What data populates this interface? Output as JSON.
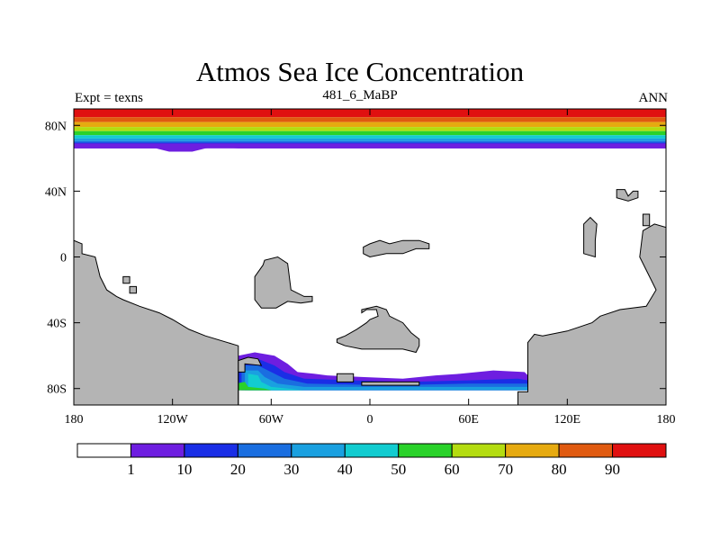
{
  "chart_data": {
    "type": "heatmap",
    "title": "Atmos Sea Ice Concentration",
    "subtitle": "481_6_MaBP",
    "left_label": "Expt = texns",
    "right_label": "ANN",
    "x_range": [
      -180,
      180
    ],
    "y_range": [
      -90,
      90
    ],
    "x_ticks": [
      {
        "value": -180,
        "label": "180"
      },
      {
        "value": -120,
        "label": "120W"
      },
      {
        "value": -60,
        "label": "60W"
      },
      {
        "value": 0,
        "label": "0"
      },
      {
        "value": 60,
        "label": "60E"
      },
      {
        "value": 120,
        "label": "120E"
      },
      {
        "value": 180,
        "label": "180"
      }
    ],
    "y_ticks": [
      {
        "value": 80,
        "label": "80N"
      },
      {
        "value": 40,
        "label": "40N"
      },
      {
        "value": 0,
        "label": "0"
      },
      {
        "value": -40,
        "label": "40S"
      },
      {
        "value": -80,
        "label": "80S"
      }
    ],
    "levels": [
      1,
      10,
      20,
      30,
      40,
      50,
      60,
      70,
      80,
      90
    ],
    "level_labels": [
      "1",
      "10",
      "20",
      "30",
      "40",
      "50",
      "60",
      "70",
      "80",
      "90"
    ],
    "colors": [
      "#ffffff",
      "#6e1ee0",
      "#1a2ee6",
      "#1a6ee0",
      "#1aa0e0",
      "#12ccd0",
      "#2ad22a",
      "#b4dc10",
      "#e6aa10",
      "#e05a10",
      "#e01010"
    ],
    "land_color": "#b4b4b4",
    "arctic_bands": [
      {
        "lat_south": 85,
        "lat_north": 90,
        "level": 10
      },
      {
        "lat_south": 82,
        "lat_north": 85,
        "level": 9
      },
      {
        "lat_south": 79,
        "lat_north": 82,
        "level": 8
      },
      {
        "lat_south": 76.5,
        "lat_north": 79,
        "level": 7
      },
      {
        "lat_south": 74,
        "lat_north": 76.5,
        "level": 6
      },
      {
        "lat_south": 72,
        "lat_north": 74,
        "level": 5
      },
      {
        "lat_south": 70.5,
        "lat_north": 72,
        "level": 4
      },
      {
        "lat_south": 69.5,
        "lat_north": 70.5,
        "level": 3
      },
      {
        "lat_south": 68.5,
        "lat_north": 69.5,
        "level": 2
      },
      {
        "lat_south": 66,
        "lat_north": 68.5,
        "level": 1
      }
    ],
    "arctic_edge": [
      [
        -180,
        66
      ],
      [
        -130,
        66
      ],
      [
        -122,
        64
      ],
      [
        -108,
        64
      ],
      [
        -100,
        66
      ],
      [
        -94,
        67
      ],
      [
        -80,
        66
      ],
      [
        -40,
        66
      ],
      [
        0,
        66
      ],
      [
        60,
        66
      ],
      [
        120,
        66
      ],
      [
        180,
        66
      ]
    ],
    "antarctic_ice": [
      {
        "level": 1,
        "polygon": [
          [
            -86,
            -81
          ],
          [
            -86,
            -78
          ],
          [
            -80,
            -60
          ],
          [
            -70,
            -58
          ],
          [
            -58,
            -60
          ],
          [
            -50,
            -65
          ],
          [
            -44,
            -70
          ],
          [
            -34,
            -71
          ],
          [
            -26,
            -72
          ],
          [
            -5,
            -73
          ],
          [
            20,
            -74
          ],
          [
            40,
            -72
          ],
          [
            55,
            -71
          ],
          [
            75,
            -69
          ],
          [
            94,
            -70
          ],
          [
            100,
            -76
          ],
          [
            110,
            -80
          ],
          [
            110,
            -81
          ]
        ]
      },
      {
        "level": 2,
        "polygon": [
          [
            -80,
            -81
          ],
          [
            -80,
            -63
          ],
          [
            -68,
            -62
          ],
          [
            -58,
            -66
          ],
          [
            -52,
            -70
          ],
          [
            -40,
            -74
          ],
          [
            -10,
            -75
          ],
          [
            20,
            -76
          ],
          [
            60,
            -75
          ],
          [
            90,
            -74
          ],
          [
            108,
            -77
          ],
          [
            108,
            -81
          ]
        ]
      },
      {
        "level": 3,
        "polygon": [
          [
            -78,
            -81
          ],
          [
            -78,
            -66
          ],
          [
            -68,
            -66
          ],
          [
            -60,
            -70
          ],
          [
            -52,
            -74
          ],
          [
            -38,
            -77
          ],
          [
            10,
            -78
          ],
          [
            60,
            -77
          ],
          [
            100,
            -77
          ],
          [
            108,
            -78
          ],
          [
            108,
            -81
          ]
        ]
      },
      {
        "level": 4,
        "polygon": [
          [
            -76,
            -81
          ],
          [
            -76,
            -69
          ],
          [
            -68,
            -69
          ],
          [
            -64,
            -73
          ],
          [
            -56,
            -77
          ],
          [
            -40,
            -79
          ],
          [
            100,
            -79
          ],
          [
            108,
            -79
          ],
          [
            108,
            -81
          ]
        ]
      },
      {
        "level": 5,
        "polygon": [
          [
            -74,
            -81
          ],
          [
            -74,
            -71
          ],
          [
            -68,
            -72
          ],
          [
            -66,
            -76
          ],
          [
            -60,
            -79
          ],
          [
            -50,
            -80
          ],
          [
            -40,
            -81
          ]
        ]
      },
      {
        "level": 6,
        "polygon": [
          [
            -82,
            -81
          ],
          [
            -82,
            -77
          ],
          [
            -76,
            -76
          ],
          [
            -74,
            -79
          ],
          [
            -64,
            -80
          ],
          [
            -60,
            -81
          ]
        ]
      }
    ],
    "land": [
      {
        "name": "Pacific margin",
        "polygon": [
          [
            -180,
            -90
          ],
          [
            -180,
            10
          ],
          [
            -175,
            8
          ],
          [
            -175,
            2
          ],
          [
            -167,
            0
          ],
          [
            -164,
            -12
          ],
          [
            -160,
            -20
          ],
          [
            -154,
            -24
          ],
          [
            -150,
            -26
          ],
          [
            -140,
            -30
          ],
          [
            -128,
            -34
          ],
          [
            -120,
            -38
          ],
          [
            -110,
            -44
          ],
          [
            -100,
            -48
          ],
          [
            -80,
            -54
          ],
          [
            -80,
            -90
          ]
        ]
      },
      {
        "name": "Antarctic block",
        "polygon": [
          [
            -80,
            -90
          ],
          [
            -80,
            -63
          ],
          [
            -74,
            -61
          ],
          [
            -68,
            -62
          ],
          [
            -66,
            -66
          ],
          [
            -76,
            -65
          ],
          [
            -76,
            -70
          ],
          [
            -80,
            -70
          ],
          [
            -80,
            -90
          ]
        ]
      },
      {
        "name": "Eastern continent",
        "polygon": [
          [
            180,
            -90
          ],
          [
            180,
            18
          ],
          [
            173,
            20
          ],
          [
            166,
            16
          ],
          [
            164,
            0
          ],
          [
            170,
            -12
          ],
          [
            174,
            -20
          ],
          [
            168,
            -30
          ],
          [
            152,
            -32
          ],
          [
            140,
            -36
          ],
          [
            135,
            -40
          ],
          [
            120,
            -45
          ],
          [
            105,
            -48
          ],
          [
            100,
            -47
          ],
          [
            96,
            -52
          ],
          [
            96,
            -82
          ],
          [
            90,
            -82
          ],
          [
            90,
            -90
          ]
        ]
      },
      {
        "name": "Continent A",
        "polygon": [
          [
            -70,
            -20
          ],
          [
            -70,
            -12
          ],
          [
            -65,
            -5
          ],
          [
            -64,
            -2
          ],
          [
            -56,
            0
          ],
          [
            -50,
            -4
          ],
          [
            -48,
            -20
          ],
          [
            -40,
            -24
          ],
          [
            -35,
            -24
          ],
          [
            -35,
            -27
          ],
          [
            -42,
            -28
          ],
          [
            -50,
            -27
          ],
          [
            -57,
            -31
          ],
          [
            -66,
            -31
          ],
          [
            -70,
            -26
          ]
        ]
      },
      {
        "name": "Continent B",
        "polygon": [
          [
            -5,
            -32
          ],
          [
            -5,
            -34
          ],
          [
            -2,
            -32
          ],
          [
            4,
            -32
          ],
          [
            5,
            -36
          ],
          [
            0,
            -38
          ],
          [
            -2,
            -40
          ],
          [
            -8,
            -44
          ],
          [
            -15,
            -48
          ],
          [
            -20,
            -50
          ],
          [
            -20,
            -52
          ],
          [
            -15,
            -54
          ],
          [
            -5,
            -56
          ],
          [
            20,
            -56
          ],
          [
            28,
            -58
          ],
          [
            30,
            -54
          ],
          [
            30,
            -50
          ],
          [
            25,
            -46
          ],
          [
            20,
            -40
          ],
          [
            12,
            -36
          ],
          [
            10,
            -32
          ],
          [
            4,
            -30
          ]
        ]
      },
      {
        "name": "Continent C",
        "polygon": [
          [
            0,
            8
          ],
          [
            6,
            10
          ],
          [
            12,
            8
          ],
          [
            20,
            10
          ],
          [
            30,
            10
          ],
          [
            36,
            8
          ],
          [
            36,
            5
          ],
          [
            28,
            5
          ],
          [
            20,
            2
          ],
          [
            10,
            2
          ],
          [
            0,
            0
          ],
          [
            -4,
            2
          ],
          [
            -4,
            6
          ]
        ]
      },
      {
        "name": "Island 1",
        "polygon": [
          [
            130,
            20
          ],
          [
            130,
            2
          ],
          [
            137,
            0
          ],
          [
            137,
            10
          ],
          [
            138,
            20
          ],
          [
            134,
            24
          ]
        ]
      },
      {
        "name": "Island 2",
        "polygon": [
          [
            150,
            41
          ],
          [
            155,
            41
          ],
          [
            157,
            37
          ],
          [
            160,
            40
          ],
          [
            163,
            40
          ],
          [
            163,
            36
          ],
          [
            157,
            34
          ],
          [
            150,
            36
          ]
        ]
      },
      {
        "name": "Island 3",
        "polygon": [
          [
            166,
            26
          ],
          [
            166,
            19
          ],
          [
            170,
            19
          ],
          [
            170,
            26
          ]
        ]
      },
      {
        "name": "Islet 1",
        "polygon": [
          [
            -150,
            -12
          ],
          [
            -150,
            -16
          ],
          [
            -146,
            -16
          ],
          [
            -146,
            -12
          ]
        ]
      },
      {
        "name": "Islet 2",
        "polygon": [
          [
            -146,
            -18
          ],
          [
            -146,
            -22
          ],
          [
            -142,
            -22
          ],
          [
            -142,
            -18
          ]
        ]
      },
      {
        "name": "Ice shelf blocks",
        "polygon": [
          [
            -20,
            -76
          ],
          [
            -20,
            -71
          ],
          [
            -10,
            -71
          ],
          [
            -10,
            -76
          ]
        ]
      },
      {
        "name": "Ice shelf strip",
        "polygon": [
          [
            -5,
            -78
          ],
          [
            -5,
            -76
          ],
          [
            30,
            -76
          ],
          [
            30,
            -78
          ]
        ]
      }
    ]
  }
}
